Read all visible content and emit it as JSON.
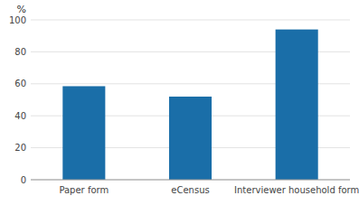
{
  "chart_data": {
    "type": "bar",
    "ylabel": "%",
    "categories": [
      "Paper form",
      "eCensus",
      "Interviewer household form"
    ],
    "values": [
      58.5,
      52.0,
      94.0
    ],
    "color": "#1a6ea8",
    "ylim": [
      0,
      100
    ],
    "yticks": [
      0,
      20,
      40,
      60,
      80,
      100
    ],
    "grid": true
  }
}
